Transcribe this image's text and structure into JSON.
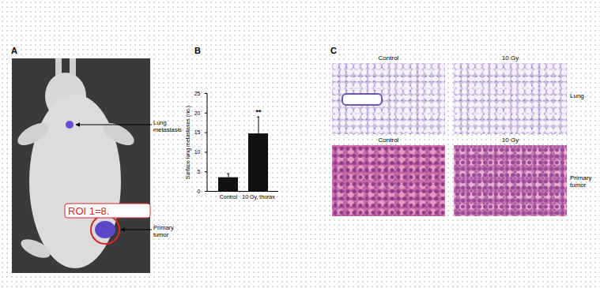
{
  "panel_a": {
    "label": "A",
    "annotations": [
      "Lung metastasis",
      "Primary tumor"
    ],
    "roi_label": "ROI 1=8."
  },
  "chart_data": {
    "type": "bar",
    "panel_label": "B",
    "categories": [
      "Control",
      "10 Gy, thorax"
    ],
    "values": [
      3.5,
      14.7
    ],
    "errors": [
      1.0,
      4.3
    ],
    "color": "#111111",
    "ylabel": "Surface lung metastases (no.)",
    "ylim": [
      0,
      25
    ],
    "yticks": [
      0,
      5,
      10,
      15,
      20,
      25
    ],
    "annotations": [
      {
        "text": "**",
        "category": "10 Gy, thorax"
      }
    ]
  },
  "panel_c": {
    "label": "C",
    "rows": [
      {
        "name": "Lung",
        "headers": [
          "Control",
          "10 Gy"
        ]
      },
      {
        "name": "Primary tumor",
        "headers": [
          "Control",
          "10 Gy"
        ]
      }
    ]
  }
}
